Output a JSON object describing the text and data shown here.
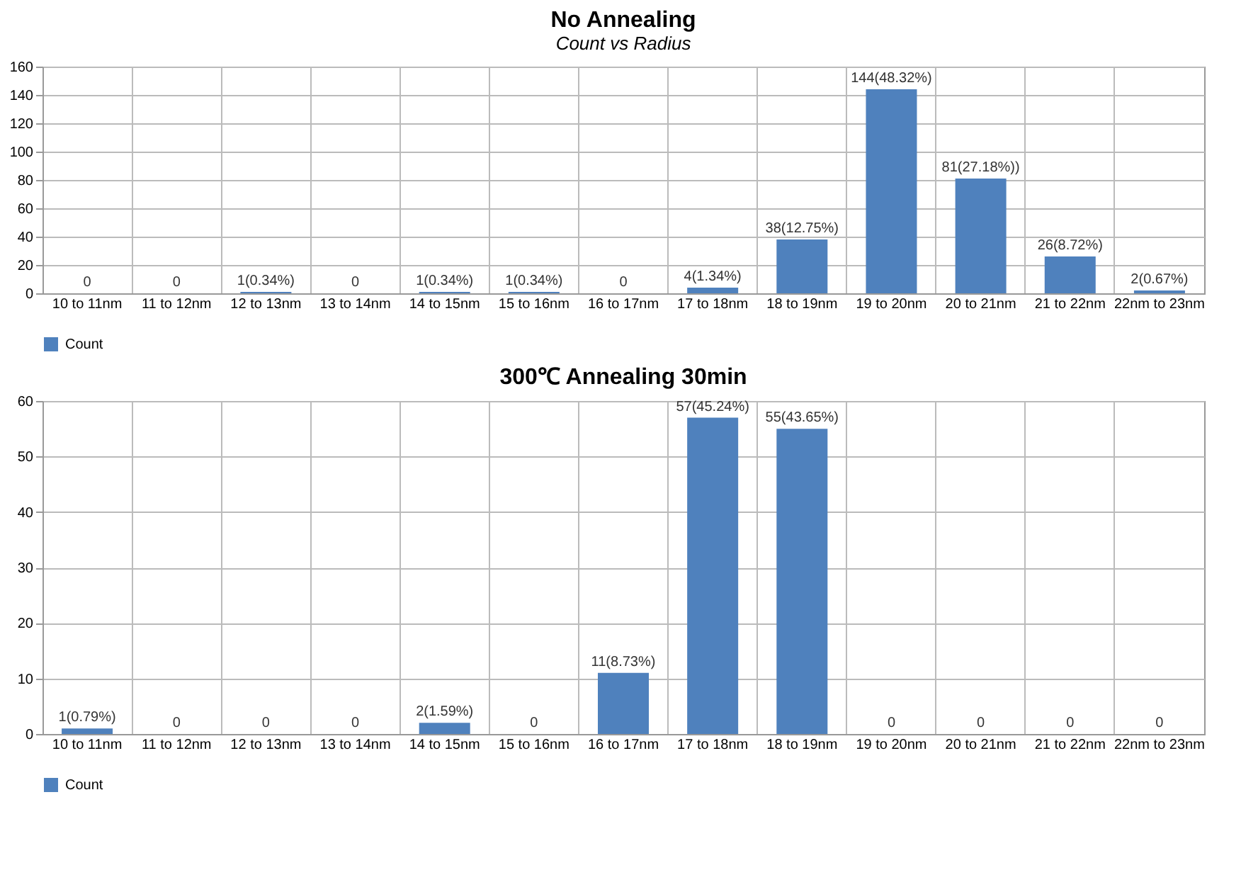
{
  "chart_data": [
    {
      "type": "bar",
      "title": "No Annealing",
      "subtitle": "Count vs Radius",
      "categories": [
        "10 to 11nm",
        "11 to 12nm",
        "12 to 13nm",
        "13 to 14nm",
        "14 to 15nm",
        "15 to 16nm",
        "16 to 17nm",
        "17 to 18nm",
        "18 to 19nm",
        "19 to 20nm",
        "20 to 21nm",
        "21 to 22nm",
        "22nm to 23nm"
      ],
      "series": [
        {
          "name": "Count",
          "color": "#4f81bd",
          "values": [
            0,
            0,
            1,
            0,
            1,
            1,
            0,
            4,
            38,
            144,
            81,
            26,
            2
          ]
        }
      ],
      "value_labels": [
        "0",
        "0",
        "1(0.34%)",
        "0",
        "1(0.34%)",
        "1(0.34%)",
        "0",
        "4(1.34%)",
        "38(12.75%)",
        "144(48.32%)",
        "81(27.18%))",
        "26(8.72%)",
        "2(0.67%)"
      ],
      "ylim": [
        0,
        160
      ],
      "yticks": [
        0,
        20,
        40,
        60,
        80,
        100,
        120,
        140,
        160
      ],
      "grid": true,
      "legend": "bottom"
    },
    {
      "type": "bar",
      "title": "300℃ Annealing 30min",
      "categories": [
        "10 to 11nm",
        "11 to 12nm",
        "12 to 13nm",
        "13 to 14nm",
        "14 to 15nm",
        "15 to 16nm",
        "16 to 17nm",
        "17 to 18nm",
        "18 to 19nm",
        "19 to 20nm",
        "20 to 21nm",
        "21 to 22nm",
        "22nm to 23nm"
      ],
      "series": [
        {
          "name": "Count",
          "color": "#4f81bd",
          "values": [
            1,
            0,
            0,
            0,
            2,
            0,
            11,
            57,
            55,
            0,
            0,
            0,
            0
          ]
        }
      ],
      "value_labels": [
        "1(0.79%)",
        "0",
        "0",
        "0",
        "2(1.59%)",
        "0",
        "11(8.73%)",
        "57(45.24%)",
        "55(43.65%)",
        "0",
        "0",
        "0",
        "0"
      ],
      "ylim": [
        0,
        60
      ],
      "yticks": [
        0,
        10,
        20,
        30,
        40,
        50,
        60
      ],
      "grid": true,
      "legend": "bottom"
    }
  ]
}
